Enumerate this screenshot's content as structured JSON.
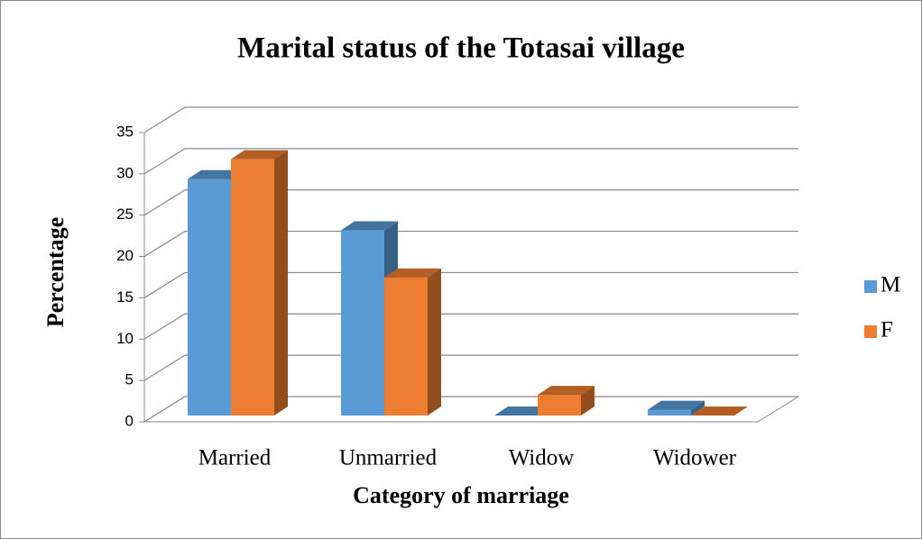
{
  "chart_data": {
    "type": "bar3d",
    "title": "Marital status of the Totasai village",
    "x_label": "Category of marriage",
    "y_label": "Percentage",
    "categories": [
      "Married",
      "Unmarried",
      "Widow",
      "Widower"
    ],
    "series": [
      {
        "name": "M",
        "color": "#5b9bd5",
        "values": [
          28.6,
          22.4,
          0,
          0.7
        ]
      },
      {
        "name": "F",
        "color": "#ed7d31",
        "values": [
          31,
          16.7,
          2.5,
          0
        ]
      }
    ],
    "ylim": [
      0,
      35
    ],
    "yticks": [
      0,
      5,
      10,
      15,
      20,
      25,
      30,
      35
    ],
    "grid": true,
    "legend": "right"
  }
}
